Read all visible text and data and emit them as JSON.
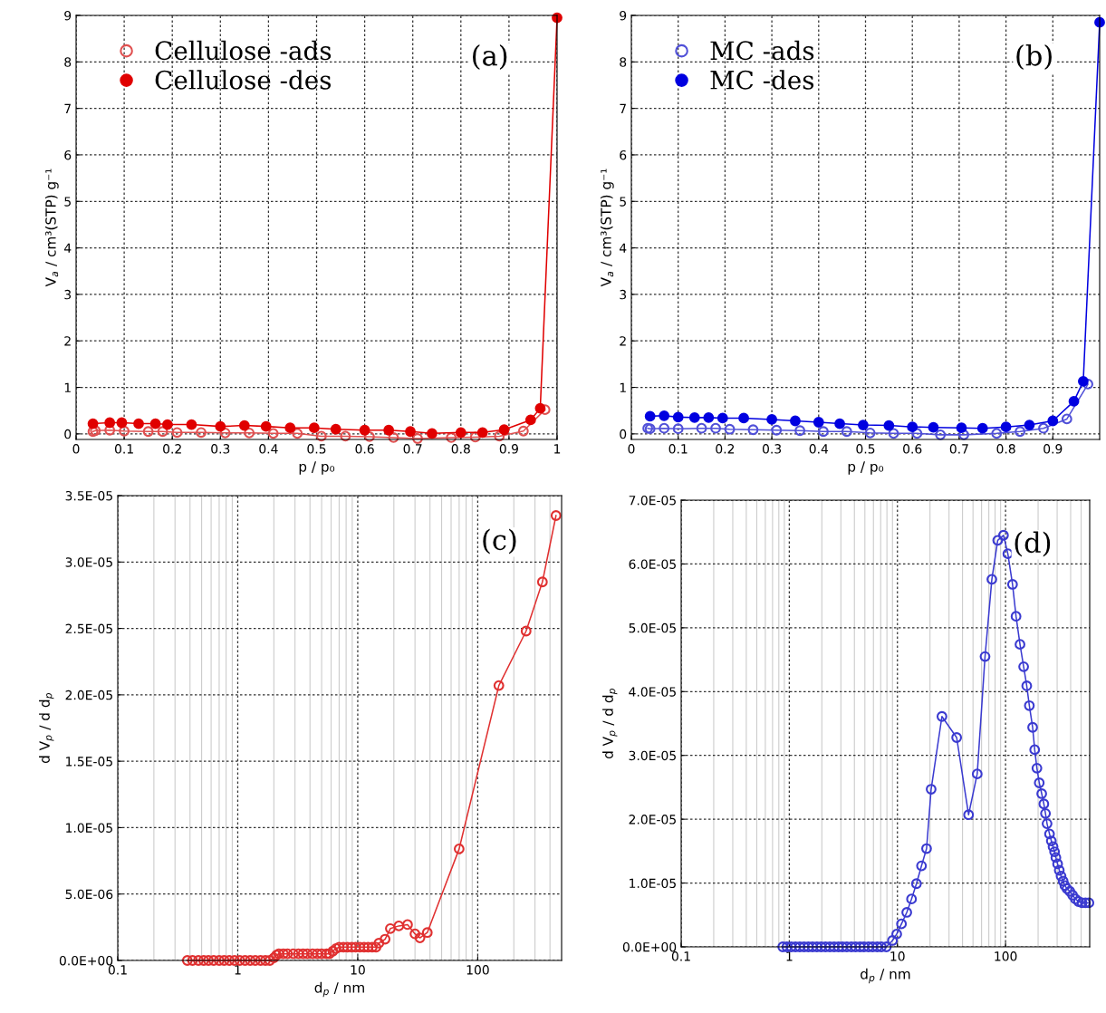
{
  "chart_data": [
    {
      "type": "line",
      "xlabel": "p / p₀",
      "ylabel": "V$_{a}$ / cm³(STP) g⁻¹",
      "annotations": [
        "(a)"
      ],
      "xlim": [
        0,
        1
      ],
      "ylim": [
        -0.12,
        9
      ],
      "xticks": [
        0,
        0.1,
        0.2,
        0.3,
        0.4,
        0.5,
        0.6,
        0.7,
        0.8,
        0.9,
        1
      ],
      "yticks": [
        0,
        1,
        2,
        3,
        4,
        5,
        6,
        7,
        8,
        9
      ],
      "grid": true,
      "legend": "top left",
      "marker": "circle",
      "line_style": "solid",
      "series": [
        {
          "name": "Cellulose -ads",
          "color": "#e05050",
          "x": [
            0.035,
            0.04,
            0.07,
            0.1,
            0.15,
            0.18,
            0.21,
            0.26,
            0.31,
            0.36,
            0.41,
            0.46,
            0.51,
            0.56,
            0.61,
            0.66,
            0.71,
            0.78,
            0.83,
            0.88,
            0.93,
            0.975
          ],
          "values": [
            0.05,
            0.07,
            0.08,
            0.06,
            0.05,
            0.05,
            0.03,
            0.03,
            0.02,
            0.02,
            0.01,
            0.01,
            -0.05,
            -0.05,
            -0.06,
            -0.08,
            -0.1,
            -0.08,
            -0.07,
            -0.05,
            0.06,
            0.52
          ]
        },
        {
          "name": "Cellulose -des",
          "color": "#e00000",
          "x": [
            0.035,
            0.07,
            0.095,
            0.13,
            0.165,
            0.19,
            0.24,
            0.3,
            0.35,
            0.395,
            0.445,
            0.495,
            0.54,
            0.6,
            0.65,
            0.695,
            0.74,
            0.8,
            0.845,
            0.89,
            0.945,
            0.965,
            1.0
          ],
          "values": [
            0.22,
            0.24,
            0.24,
            0.22,
            0.22,
            0.2,
            0.2,
            0.16,
            0.18,
            0.16,
            0.13,
            0.13,
            0.1,
            0.08,
            0.08,
            0.05,
            0.01,
            0.03,
            0.03,
            0.09,
            0.3,
            0.55,
            8.95
          ]
        }
      ]
    },
    {
      "type": "line",
      "xlabel": "p / p₀",
      "ylabel": "V$_{a}$ / cm³(STP) g⁻¹",
      "annotations": [
        "(b)"
      ],
      "xlim": [
        0,
        1
      ],
      "ylim": [
        -0.12,
        9
      ],
      "xticks": [
        0,
        0.1,
        0.2,
        0.3,
        0.4,
        0.5,
        0.6,
        0.7,
        0.8,
        0.9
      ],
      "yticks": [
        0,
        1,
        2,
        3,
        4,
        5,
        6,
        7,
        8,
        9
      ],
      "grid": true,
      "legend": "top left",
      "marker": "circle",
      "line_style": "solid",
      "series": [
        {
          "name": "MC -ads",
          "color": "#5050d8",
          "x": [
            0.035,
            0.04,
            0.07,
            0.1,
            0.15,
            0.18,
            0.21,
            0.26,
            0.31,
            0.36,
            0.41,
            0.46,
            0.51,
            0.56,
            0.61,
            0.66,
            0.71,
            0.78,
            0.83,
            0.88,
            0.93,
            0.975
          ],
          "values": [
            0.12,
            0.11,
            0.12,
            0.11,
            0.12,
            0.12,
            0.1,
            0.09,
            0.08,
            0.07,
            0.05,
            0.05,
            0.02,
            0.01,
            0.01,
            -0.02,
            -0.02,
            0.01,
            0.05,
            0.12,
            0.32,
            1.07
          ]
        },
        {
          "name": "MC -des",
          "color": "#0000e0",
          "x": [
            0.04,
            0.07,
            0.1,
            0.135,
            0.165,
            0.195,
            0.24,
            0.3,
            0.35,
            0.4,
            0.445,
            0.495,
            0.55,
            0.6,
            0.645,
            0.705,
            0.75,
            0.8,
            0.85,
            0.9,
            0.945,
            0.965,
            1.0
          ],
          "values": [
            0.38,
            0.39,
            0.36,
            0.35,
            0.35,
            0.34,
            0.34,
            0.31,
            0.28,
            0.25,
            0.22,
            0.19,
            0.18,
            0.15,
            0.14,
            0.13,
            0.12,
            0.15,
            0.19,
            0.28,
            0.7,
            1.13,
            8.85
          ]
        }
      ]
    },
    {
      "type": "line",
      "xlabel": "d$_{p}$ / nm",
      "ylabel": "d V$_{p}$ / d d$_{p}$",
      "annotations": [
        "(c)"
      ],
      "log": "x",
      "xlim": [
        0.1,
        500
      ],
      "ylim": [
        0,
        3.5e-05
      ],
      "xticks": [
        0.1,
        1,
        10,
        100
      ],
      "yticks": [
        {
          "value": 0,
          "label": "0.0E+00"
        },
        {
          "value": 5e-06,
          "label": "5.0E-06"
        },
        {
          "value": 1e-05,
          "label": "1.0E-05"
        },
        {
          "value": 1.5e-05,
          "label": "1.5E-05"
        },
        {
          "value": 2e-05,
          "label": "2.0E-05"
        },
        {
          "value": 2.5e-05,
          "label": "2.5E-05"
        },
        {
          "value": 3e-05,
          "label": "3.0E-05"
        },
        {
          "value": 3.5e-05,
          "label": "3.5E-05"
        }
      ],
      "grid": true,
      "marker": "circle",
      "line_style": "solid",
      "series": [
        {
          "color": "#e03030",
          "x": [
            0.38,
            0.42,
            0.47,
            0.52,
            0.57,
            0.63,
            0.7,
            0.77,
            0.85,
            0.94,
            1.04,
            1.15,
            1.27,
            1.4,
            1.55,
            1.7,
            1.85,
            2.0,
            2.1,
            2.2,
            2.4,
            2.6,
            2.9,
            3.2,
            3.5,
            3.8,
            4.2,
            4.6,
            5.0,
            5.5,
            5.8,
            6.2,
            6.6,
            7.0,
            7.6,
            8.2,
            8.9,
            9.6,
            10.4,
            11.3,
            12.2,
            13.2,
            14.2,
            15,
            16.9,
            18.7,
            22,
            26,
            30,
            33,
            38,
            70,
            150,
            253,
            346,
            449
          ],
          "values": [
            0,
            0,
            0,
            0,
            0,
            0,
            0,
            0,
            0,
            0,
            0,
            0,
            0,
            0,
            0,
            0,
            0,
            2e-07,
            4e-07,
            5e-07,
            5e-07,
            5e-07,
            5e-07,
            5e-07,
            5e-07,
            5e-07,
            5e-07,
            5e-07,
            5e-07,
            5e-07,
            5e-07,
            7e-07,
            9e-07,
            1e-06,
            1e-06,
            1e-06,
            1e-06,
            1e-06,
            1e-06,
            1e-06,
            1e-06,
            1e-06,
            1e-06,
            1.3e-06,
            1.6e-06,
            2.4e-06,
            2.6e-06,
            2.7e-06,
            2e-06,
            1.7e-06,
            2.1e-06,
            8.4e-06,
            2.07e-05,
            2.48e-05,
            2.85e-05,
            3.35e-05
          ]
        }
      ]
    },
    {
      "type": "line",
      "xlabel": "d$_{p}$ / nm",
      "ylabel": "d V$_{p}$ / d d$_{p}$",
      "annotations": [
        "(d)"
      ],
      "log": "x",
      "xlim": [
        0.1,
        600
      ],
      "ylim": [
        0,
        7e-05
      ],
      "xticks": [
        0.1,
        1,
        10,
        100
      ],
      "yticks": [
        {
          "value": 0,
          "label": "0.0E+00"
        },
        {
          "value": 1e-05,
          "label": "1.0E-05"
        },
        {
          "value": 2e-05,
          "label": "2.0E-05"
        },
        {
          "value": 3e-05,
          "label": "3.0E-05"
        },
        {
          "value": 4e-05,
          "label": "4.0E-05"
        },
        {
          "value": 5e-05,
          "label": "5.0E-05"
        },
        {
          "value": 6e-05,
          "label": "6.0E-05"
        },
        {
          "value": 7e-05,
          "label": "7.0E-05"
        }
      ],
      "grid": true,
      "marker": "circle",
      "line_style": "solid",
      "series": [
        {
          "color": "#3a3ad0",
          "x": [
            0.87,
            0.95,
            1.04,
            1.14,
            1.25,
            1.37,
            1.5,
            1.64,
            1.8,
            1.97,
            2.16,
            2.37,
            2.6,
            2.85,
            3.1,
            3.4,
            3.75,
            4.1,
            4.5,
            4.9,
            5.4,
            5.9,
            6.5,
            7.1,
            7.9,
            9.0,
            9.85,
            10.9,
            12.2,
            13.5,
            15.0,
            16.7,
            18.6,
            20.5,
            25.8,
            35.3,
            45.5,
            54.7,
            64.6,
            74.7,
            84.6,
            95.7,
            105,
            116,
            125,
            136,
            147,
            157,
            166,
            178,
            186,
            195,
            205,
            216,
            226,
            234,
            242,
            255,
            265,
            275,
            284,
            292,
            303,
            314,
            326,
            341,
            354,
            370,
            393,
            417,
            443,
            473,
            509,
            548,
            590
          ],
          "values": [
            0,
            0,
            0,
            0,
            0,
            0,
            0,
            0,
            0,
            0,
            0,
            0,
            0,
            0,
            0,
            0,
            0,
            0,
            0,
            0,
            0,
            0,
            0,
            0,
            0,
            1e-06,
            2e-06,
            3.6e-06,
            5.4e-06,
            7.5e-06,
            9.9e-06,
            1.27e-05,
            1.54e-05,
            2.47e-05,
            3.61e-05,
            3.28e-05,
            2.07e-05,
            2.71e-05,
            4.55e-05,
            5.76e-05,
            6.37e-05,
            6.45e-05,
            6.16e-05,
            5.68e-05,
            5.18e-05,
            4.74e-05,
            4.39e-05,
            4.09e-05,
            3.78e-05,
            3.44e-05,
            3.09e-05,
            2.8e-05,
            2.57e-05,
            2.4e-05,
            2.24e-05,
            2.09e-05,
            1.93e-05,
            1.77e-05,
            1.66e-05,
            1.57e-05,
            1.49e-05,
            1.4e-05,
            1.3e-05,
            1.2e-05,
            1.11e-05,
            1.03e-05,
            9.6e-06,
            9.1e-06,
            8.7e-06,
            8.1e-06,
            7.5e-06,
            7.1e-06,
            6.9e-06,
            6.9e-06,
            6.9e-06
          ]
        }
      ]
    }
  ]
}
